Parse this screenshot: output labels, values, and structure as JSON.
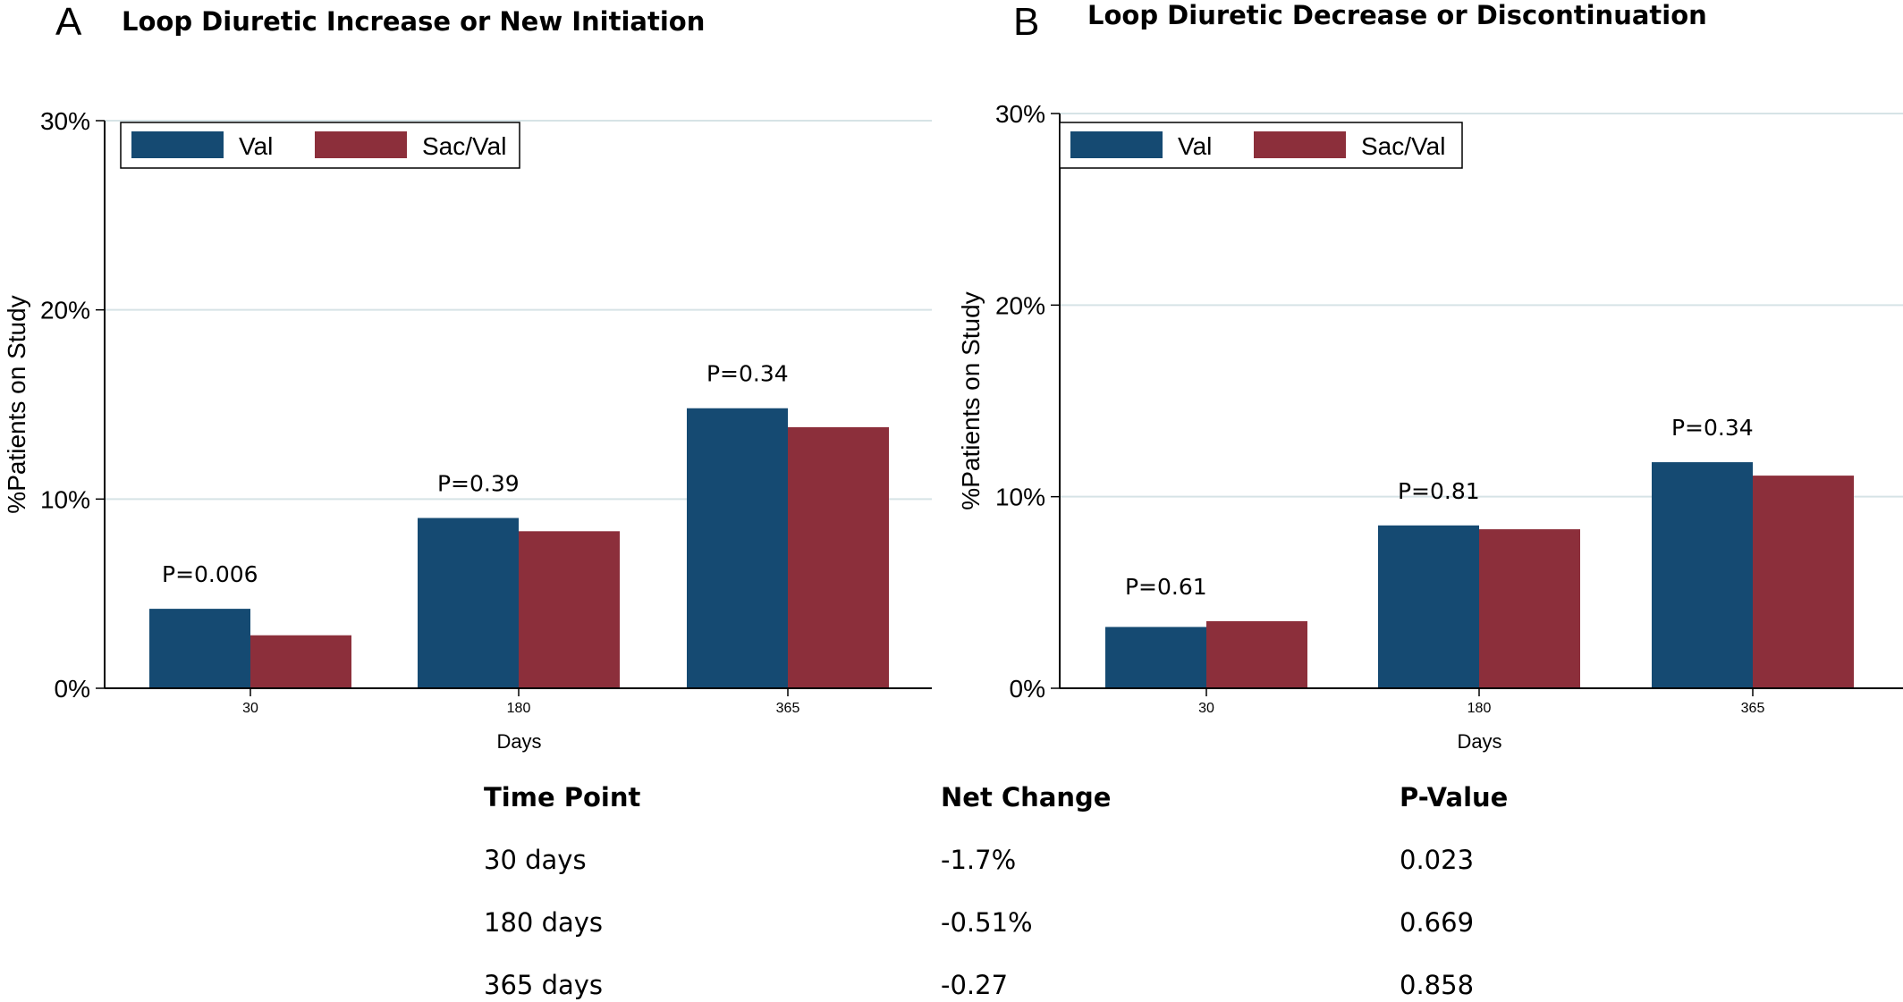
{
  "chart_data": [
    {
      "type": "bar",
      "panel": "A",
      "title": "Loop Diuretic Increase or New Initiation",
      "xlabel": "Days",
      "ylabel": "%Patients on Study",
      "categories": [
        "30",
        "180",
        "365"
      ],
      "series": [
        {
          "name": "Val",
          "values": [
            4.2,
            9.0,
            14.8
          ]
        },
        {
          "name": "Sac/Val",
          "values": [
            2.8,
            8.3,
            13.8
          ]
        }
      ],
      "annotations": [
        "P=0.006",
        "P=0.39",
        "P=0.34"
      ],
      "ylim": [
        0,
        30
      ],
      "yticks": [
        0,
        10,
        20,
        30
      ],
      "ytick_labels": [
        "0%",
        "10%",
        "20%",
        "30%"
      ],
      "grid": true,
      "legend_position": "top-left",
      "colors": {
        "Val": "#154a72",
        "Sac/Val": "#8c2f3b",
        "grid": "#d6e3e6"
      }
    },
    {
      "type": "bar",
      "panel": "B",
      "title": "Loop Diuretic Decrease or Discontinuation",
      "xlabel": "Days",
      "ylabel": "%Patients on Study",
      "categories": [
        "30",
        "180",
        "365"
      ],
      "series": [
        {
          "name": "Val",
          "values": [
            3.2,
            8.5,
            11.8
          ]
        },
        {
          "name": "Sac/Val",
          "values": [
            3.5,
            8.3,
            11.1
          ]
        }
      ],
      "annotations": [
        "P=0.61",
        "P=0.81",
        "P=0.34"
      ],
      "ylim": [
        0,
        30
      ],
      "yticks": [
        0,
        10,
        20,
        30
      ],
      "ytick_labels": [
        "0%",
        "10%",
        "20%",
        "30%"
      ],
      "grid": true,
      "legend_position": "top-left",
      "colors": {
        "Val": "#154a72",
        "Sac/Val": "#8c2f3b",
        "grid": "#d6e3e6"
      }
    }
  ],
  "table": {
    "headers": [
      "Time Point",
      "Net Change",
      "P-Value"
    ],
    "rows": [
      [
        "30 days",
        "-1.7%",
        "0.023"
      ],
      [
        "180 days",
        "-0.51%",
        "0.669"
      ],
      [
        "365 days",
        "-0.27",
        "0.858"
      ]
    ]
  }
}
